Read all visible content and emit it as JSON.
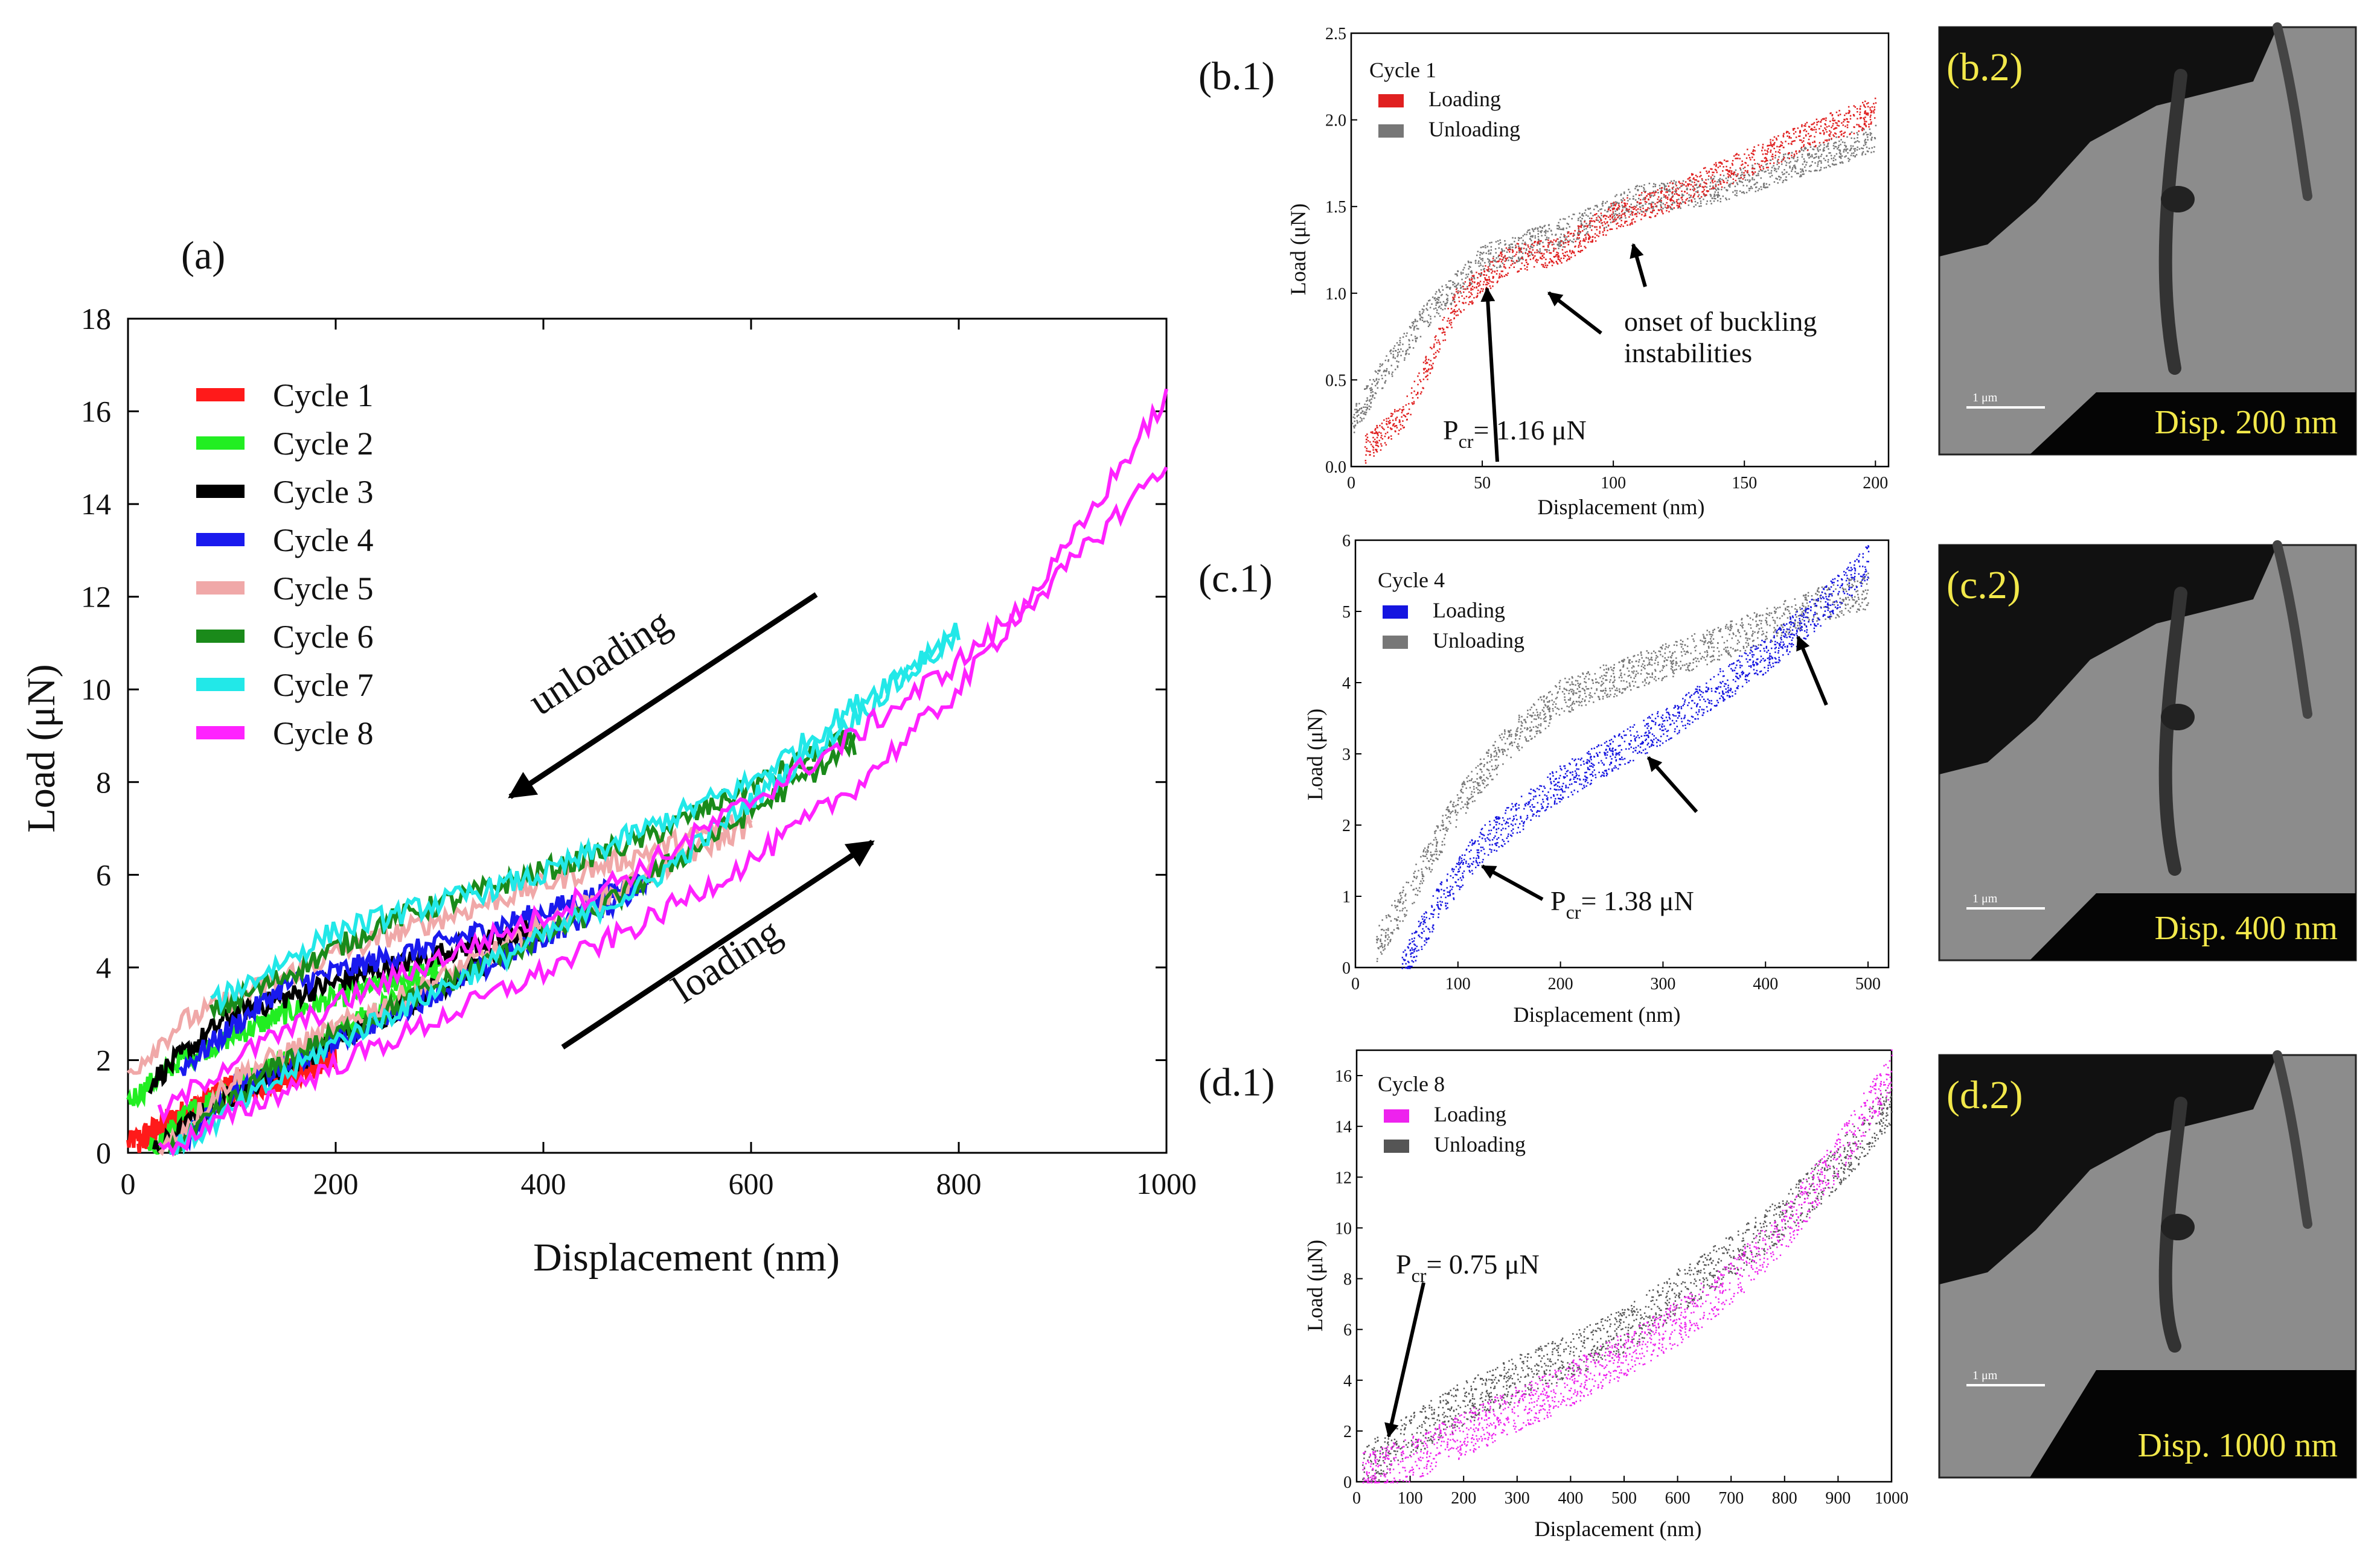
{
  "chart_data": [
    {
      "id": "a",
      "panel_label": "(a)",
      "type": "line",
      "xlabel": "Displacement (nm)",
      "ylabel": "Load (μN)",
      "xlim": [
        0,
        1000
      ],
      "ylim": [
        0,
        18
      ],
      "xticks": [
        0,
        200,
        400,
        600,
        800,
        1000
      ],
      "yticks": [
        0,
        2,
        4,
        6,
        8,
        10,
        12,
        14,
        16,
        18
      ],
      "legend_position": "upper-left",
      "series": [
        {
          "name": "Cycle 1",
          "color": "#ff1a1a",
          "max_disp": 200,
          "loading": [
            [
              10,
              0
            ],
            [
              40,
              0.7
            ],
            [
              100,
              1.2
            ],
            [
              200,
              2.0
            ]
          ],
          "unloading": [
            [
              200,
              2.1
            ],
            [
              100,
              1.5
            ],
            [
              30,
              0.6
            ],
            [
              0,
              0.2
            ]
          ]
        },
        {
          "name": "Cycle 2",
          "color": "#22ee22",
          "max_disp": 300,
          "loading": [
            [
              20,
              0
            ],
            [
              60,
              0.9
            ],
            [
              150,
              2.0
            ],
            [
              300,
              3.8
            ]
          ],
          "unloading": [
            [
              300,
              4.0
            ],
            [
              150,
              3.0
            ],
            [
              50,
              2.0
            ],
            [
              0,
              1.1
            ]
          ]
        },
        {
          "name": "Cycle 3",
          "color": "#000000",
          "max_disp": 400,
          "loading": [
            [
              25,
              0
            ],
            [
              80,
              1.0
            ],
            [
              200,
              2.4
            ],
            [
              400,
              4.8
            ]
          ],
          "unloading": [
            [
              400,
              4.9
            ],
            [
              250,
              4.0
            ],
            [
              100,
              3.0
            ],
            [
              20,
              1.5
            ]
          ]
        },
        {
          "name": "Cycle 4",
          "color": "#1a1aee",
          "max_disp": 500,
          "loading": [
            [
              40,
              0
            ],
            [
              100,
              1.3
            ],
            [
              300,
              3.5
            ],
            [
              500,
              5.8
            ]
          ],
          "unloading": [
            [
              500,
              5.9
            ],
            [
              300,
              4.5
            ],
            [
              150,
              3.6
            ],
            [
              50,
              1.8
            ]
          ]
        },
        {
          "name": "Cycle 5",
          "color": "#f0a8a8",
          "max_disp": 600,
          "loading": [
            [
              30,
              0
            ],
            [
              100,
              1.6
            ],
            [
              350,
              4.3
            ],
            [
              600,
              7.1
            ]
          ],
          "unloading": [
            [
              600,
              7.2
            ],
            [
              400,
              5.8
            ],
            [
              200,
              4.3
            ],
            [
              50,
              2.8
            ],
            [
              0,
              1.7
            ]
          ]
        },
        {
          "name": "Cycle 6",
          "color": "#1a8a1a",
          "max_disp": 700,
          "loading": [
            [
              40,
              0
            ],
            [
              150,
              2.0
            ],
            [
              450,
              5.2
            ],
            [
              700,
              8.8
            ]
          ],
          "unloading": [
            [
              700,
              9.0
            ],
            [
              500,
              6.8
            ],
            [
              250,
              5.0
            ],
            [
              80,
              3.0
            ]
          ]
        },
        {
          "name": "Cycle 7",
          "color": "#22e8e8",
          "max_disp": 800,
          "loading": [
            [
              40,
              0
            ],
            [
              200,
              2.4
            ],
            [
              500,
              5.8
            ],
            [
              800,
              11.2
            ]
          ],
          "unloading": [
            [
              800,
              11.3
            ],
            [
              600,
              8.0
            ],
            [
              400,
              6.0
            ],
            [
              200,
              4.8
            ],
            [
              80,
              3.2
            ]
          ]
        },
        {
          "name": "Cycle 8",
          "color": "#ff22ff",
          "max_disp": 1000,
          "loading": [
            [
              30,
              0
            ],
            [
              100,
              0.8
            ],
            [
              200,
              1.9
            ],
            [
              300,
              2.9
            ],
            [
              400,
              3.9
            ],
            [
              500,
              5.0
            ],
            [
              600,
              6.3
            ],
            [
              700,
              7.9
            ],
            [
              800,
              10.0
            ],
            [
              900,
              12.9
            ],
            [
              1000,
              16.3
            ]
          ],
          "unloading": [
            [
              1000,
              14.9
            ],
            [
              900,
              12.5
            ],
            [
              800,
              10.6
            ],
            [
              700,
              9.0
            ],
            [
              600,
              7.6
            ],
            [
              500,
              6.2
            ],
            [
              400,
              5.1
            ],
            [
              300,
              4.2
            ],
            [
              200,
              3.2
            ],
            [
              100,
              2.0
            ],
            [
              30,
              0.8
            ]
          ]
        }
      ],
      "annotations": {
        "unloading": "unloading",
        "loading": "loading"
      }
    },
    {
      "id": "b1",
      "panel_label": "(b.1)",
      "type": "scatter",
      "title": "Cycle 1",
      "xlabel": "Displacement (nm)",
      "ylabel": "Load (μN)",
      "xlim": [
        0,
        205
      ],
      "ylim": [
        0,
        2.5
      ],
      "xticks": [
        0,
        50,
        100,
        150,
        200
      ],
      "yticks": [
        0.0,
        0.5,
        1.0,
        1.5,
        2.0,
        2.5
      ],
      "legend_position": "upper-left",
      "series": [
        {
          "name": "Loading",
          "color": "#e02020",
          "points": [
            [
              5,
              0.1
            ],
            [
              20,
              0.3
            ],
            [
              40,
              0.95
            ],
            [
              60,
              1.2
            ],
            [
              80,
              1.25
            ],
            [
              100,
              1.45
            ],
            [
              120,
              1.55
            ],
            [
              150,
              1.75
            ],
            [
              180,
              1.95
            ],
            [
              200,
              2.05
            ]
          ]
        },
        {
          "name": "Unloading",
          "color": "#777777",
          "points": [
            [
              200,
              1.9
            ],
            [
              170,
              1.75
            ],
            [
              140,
              1.6
            ],
            [
              110,
              1.55
            ],
            [
              80,
              1.35
            ],
            [
              50,
              1.2
            ],
            [
              30,
              0.9
            ],
            [
              10,
              0.5
            ],
            [
              0,
              0.25
            ]
          ]
        }
      ],
      "annotations": {
        "pcr_prefix": "P",
        "pcr_sub": "cr",
        "pcr_value": "= 1.16 μN",
        "buckling_line1": "onset of buckling",
        "buckling_line2": "instabilities"
      }
    },
    {
      "id": "c1",
      "panel_label": "(c.1)",
      "type": "scatter",
      "title": "Cycle 4",
      "xlabel": "Displacement (nm)",
      "ylabel": "Load (μN)",
      "xlim": [
        0,
        520
      ],
      "ylim": [
        0,
        6
      ],
      "xticks": [
        0,
        100,
        200,
        300,
        400,
        500
      ],
      "yticks": [
        0,
        1,
        2,
        3,
        4,
        5,
        6
      ],
      "legend_position": "upper-left",
      "series": [
        {
          "name": "Loading",
          "color": "#1515e0",
          "points": [
            [
              45,
              0
            ],
            [
              80,
              0.9
            ],
            [
              120,
              1.7
            ],
            [
              200,
              2.6
            ],
            [
              300,
              3.4
            ],
            [
              400,
              4.4
            ],
            [
              450,
              5.0
            ],
            [
              500,
              5.7
            ]
          ]
        },
        {
          "name": "Unloading",
          "color": "#777777",
          "points": [
            [
              500,
              5.3
            ],
            [
              450,
              5.1
            ],
            [
              400,
              4.8
            ],
            [
              300,
              4.3
            ],
            [
              200,
              3.8
            ],
            [
              150,
              3.2
            ],
            [
              100,
              2.3
            ],
            [
              50,
              1.0
            ],
            [
              20,
              0.3
            ]
          ]
        }
      ],
      "annotations": {
        "pcr_prefix": "P",
        "pcr_sub": "cr",
        "pcr_value": "= 1.38 μN"
      }
    },
    {
      "id": "d1",
      "panel_label": "(d.1)",
      "type": "scatter",
      "title": "Cycle 8",
      "xlabel": "Displacement (nm)",
      "ylabel": "Load (μN)",
      "xlim": [
        0,
        1000
      ],
      "ylim": [
        0,
        17
      ],
      "xticks": [
        0,
        100,
        200,
        300,
        400,
        500,
        600,
        700,
        800,
        900,
        1000
      ],
      "yticks": [
        0,
        2,
        4,
        6,
        8,
        10,
        12,
        14,
        16
      ],
      "legend_position": "upper-left",
      "series": [
        {
          "name": "Loading",
          "color": "#ee22ee",
          "points": [
            [
              10,
              0.3
            ],
            [
              100,
              0.9
            ],
            [
              200,
              1.9
            ],
            [
              300,
              2.9
            ],
            [
              400,
              3.9
            ],
            [
              500,
              5.0
            ],
            [
              600,
              6.3
            ],
            [
              700,
              7.9
            ],
            [
              800,
              10.0
            ],
            [
              900,
              12.9
            ],
            [
              1000,
              16.2
            ]
          ]
        },
        {
          "name": "Unloading",
          "color": "#555555",
          "points": [
            [
              1000,
              14.9
            ],
            [
              900,
              12.5
            ],
            [
              800,
              10.5
            ],
            [
              700,
              8.9
            ],
            [
              600,
              7.5
            ],
            [
              500,
              6.0
            ],
            [
              400,
              5.0
            ],
            [
              300,
              4.1
            ],
            [
              200,
              3.1
            ],
            [
              100,
              1.9
            ],
            [
              10,
              0.5
            ]
          ]
        }
      ],
      "annotations": {
        "pcr_prefix": "P",
        "pcr_sub": "cr",
        "pcr_value": "= 0.75 μN"
      }
    }
  ],
  "images": [
    {
      "id": "b2",
      "panel_label": "(b.2)",
      "scale": "1 μm",
      "caption": "Disp. 200 nm"
    },
    {
      "id": "c2",
      "panel_label": "(c.2)",
      "scale": "1 μm",
      "caption": "Disp. 400 nm"
    },
    {
      "id": "d2",
      "panel_label": "(d.2)",
      "scale": "1 μm",
      "caption": "Disp. 1000  nm"
    }
  ]
}
